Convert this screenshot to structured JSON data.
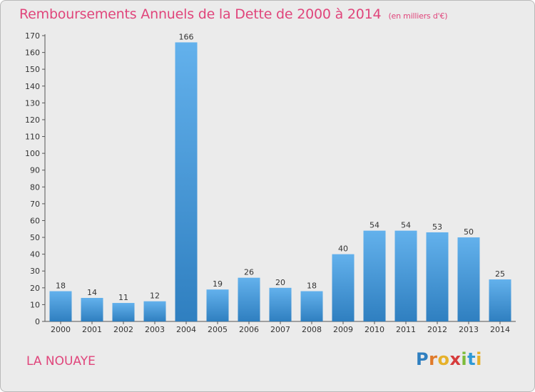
{
  "chart_data": {
    "type": "bar",
    "title": "Remboursements Annuels de la Dette de 2000 à 2014",
    "unit": "(en milliers d'€)",
    "categories": [
      "2000",
      "2001",
      "2002",
      "2003",
      "2004",
      "2005",
      "2006",
      "2007",
      "2008",
      "2009",
      "2010",
      "2011",
      "2012",
      "2013",
      "2014"
    ],
    "values": [
      18,
      14,
      11,
      12,
      166,
      19,
      26,
      20,
      18,
      40,
      54,
      54,
      53,
      50,
      25
    ],
    "ylim": [
      0,
      170
    ],
    "yticks": [
      0,
      10,
      20,
      30,
      40,
      50,
      60,
      70,
      80,
      90,
      100,
      110,
      120,
      130,
      140,
      150,
      160,
      170
    ],
    "grid": false,
    "bar_color_top": "#63b1ec",
    "bar_color_bottom": "#2f7fc0"
  },
  "commune": "LA NOUAYE",
  "brand": {
    "letters": [
      "P",
      "r",
      "o",
      "x",
      "i",
      "t",
      "i"
    ],
    "colors": [
      "#2f7fc0",
      "#e07a2a",
      "#e6b12a",
      "#d63b3b",
      "#7dbb3a",
      "#2f9ad6",
      "#e6b12a"
    ]
  },
  "colors": {
    "accent": "#e0457b",
    "background": "#ebebeb"
  }
}
